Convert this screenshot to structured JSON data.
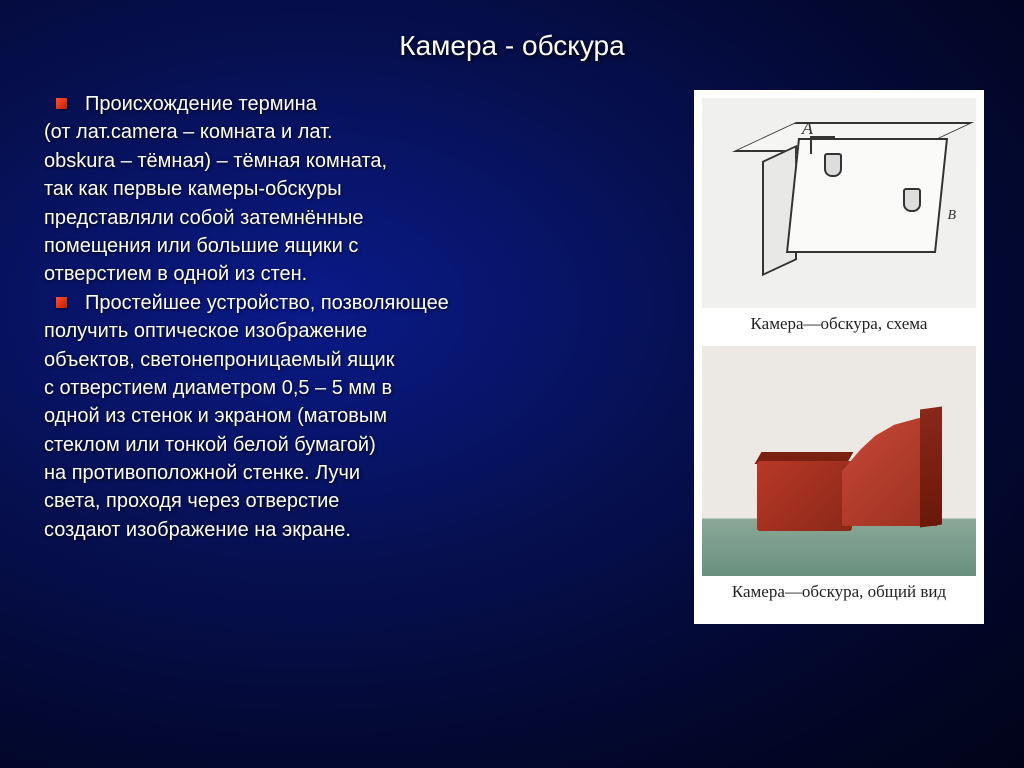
{
  "title": "Камера - обскура",
  "bullets": [
    {
      "heading": "Происхождение термина",
      "lines": [
        "(от лат.camera – комната и лат.",
        " obskura – тёмная) – тёмная комната,",
        "так как первые камеры-обскуры",
        "представляли собой затемнённые",
        "помещения или большие ящики с",
        "отверстием в одной из стен."
      ]
    },
    {
      "heading": "Простейшее устройство, позволяющее",
      "lines": [
        " получить оптическое изображение",
        "объектов, светонепроницаемый ящик",
        "с отверстием диаметром 0,5 – 5 мм в",
        "одной из стенок и экраном (матовым",
        "стеклом или тонкой белой бумагой)",
        "на противоположной стенке. Лучи",
        "света, проходя через отверстие",
        " создают изображение на экране."
      ]
    }
  ],
  "figures": {
    "schema": {
      "label_a": "A",
      "label_b": "B",
      "caption": "Камера—обскура, схема"
    },
    "view": {
      "caption": "Камера—обскура, общий вид"
    }
  },
  "colors": {
    "bg_center": "#0a1a8a",
    "bg_edge": "#010418",
    "bullet": "#ff5030",
    "text": "#ffffff",
    "camera_red": "#b83828"
  }
}
